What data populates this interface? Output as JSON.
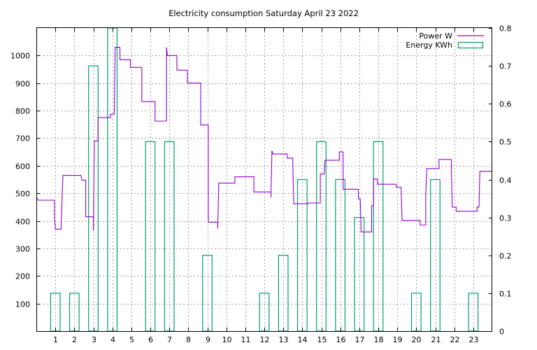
{
  "chart_data": {
    "type": "line",
    "title": "Electricity consumption Saturday April 23 2022",
    "xlabel": "",
    "ylabel": "",
    "xlim": [
      0,
      24
    ],
    "ylim": [
      0,
      1100
    ],
    "y2lim": [
      0,
      0.8
    ],
    "grid": true,
    "legend_position": "top-right",
    "x_ticks": [
      "1",
      "2",
      "3",
      "4",
      "5",
      "6",
      "7",
      "8",
      "9",
      "10",
      "11",
      "12",
      "13",
      "14",
      "15",
      "16",
      "17",
      "18",
      "19",
      "20",
      "21",
      "22",
      "23"
    ],
    "y_ticks": [
      "100",
      "200",
      "300",
      "400",
      "500",
      "600",
      "700",
      "800",
      "900",
      "1000"
    ],
    "y2_ticks": [
      "0",
      "0.1",
      "0.2",
      "0.3",
      "0.4",
      "0.5",
      "0.6",
      "0.7",
      "0.8"
    ],
    "series": [
      {
        "name": "Power W",
        "color": "#9400d3",
        "axis": "y",
        "style": "steps",
        "points": [
          [
            0.0,
            485
          ],
          [
            0.1,
            475
          ],
          [
            0.95,
            475
          ],
          [
            0.95,
            415
          ],
          [
            1.0,
            370
          ],
          [
            1.3,
            370
          ],
          [
            1.35,
            480
          ],
          [
            1.4,
            565
          ],
          [
            2.35,
            565
          ],
          [
            2.4,
            548
          ],
          [
            2.6,
            548
          ],
          [
            2.6,
            415
          ],
          [
            3.0,
            415
          ],
          [
            3.0,
            365
          ],
          [
            3.05,
            690
          ],
          [
            3.25,
            690
          ],
          [
            3.25,
            775
          ],
          [
            3.9,
            775
          ],
          [
            3.9,
            787
          ],
          [
            4.1,
            787
          ],
          [
            4.15,
            1030
          ],
          [
            4.4,
            1030
          ],
          [
            4.4,
            985
          ],
          [
            4.95,
            985
          ],
          [
            4.95,
            957
          ],
          [
            5.55,
            957
          ],
          [
            5.55,
            833
          ],
          [
            6.25,
            833
          ],
          [
            6.25,
            762
          ],
          [
            6.85,
            762
          ],
          [
            6.85,
            1030
          ],
          [
            6.9,
            1000
          ],
          [
            7.4,
            1000
          ],
          [
            7.4,
            947
          ],
          [
            7.95,
            947
          ],
          [
            7.95,
            900
          ],
          [
            8.65,
            900
          ],
          [
            8.65,
            748
          ],
          [
            9.05,
            748
          ],
          [
            9.05,
            395
          ],
          [
            9.55,
            395
          ],
          [
            9.55,
            372
          ],
          [
            9.6,
            537
          ],
          [
            10.45,
            537
          ],
          [
            10.45,
            560
          ],
          [
            11.45,
            560
          ],
          [
            11.45,
            505
          ],
          [
            12.35,
            505
          ],
          [
            12.35,
            485
          ],
          [
            12.4,
            655
          ],
          [
            12.45,
            643
          ],
          [
            13.2,
            643
          ],
          [
            13.2,
            628
          ],
          [
            13.5,
            628
          ],
          [
            13.5,
            600
          ],
          [
            13.55,
            462
          ],
          [
            14.3,
            462
          ],
          [
            14.3,
            465
          ],
          [
            14.95,
            465
          ],
          [
            14.95,
            570
          ],
          [
            15.15,
            570
          ],
          [
            15.2,
            620
          ],
          [
            15.95,
            620
          ],
          [
            15.95,
            650
          ],
          [
            16.15,
            650
          ],
          [
            16.15,
            515
          ],
          [
            16.95,
            515
          ],
          [
            16.95,
            480
          ],
          [
            17.05,
            480
          ],
          [
            17.1,
            360
          ],
          [
            17.65,
            360
          ],
          [
            17.65,
            455
          ],
          [
            17.75,
            455
          ],
          [
            17.75,
            552
          ],
          [
            17.95,
            552
          ],
          [
            17.95,
            533
          ],
          [
            18.95,
            533
          ],
          [
            18.95,
            522
          ],
          [
            19.2,
            522
          ],
          [
            19.25,
            402
          ],
          [
            20.2,
            402
          ],
          [
            20.2,
            385
          ],
          [
            20.5,
            385
          ],
          [
            20.5,
            490
          ],
          [
            20.55,
            590
          ],
          [
            21.2,
            590
          ],
          [
            21.2,
            623
          ],
          [
            21.85,
            623
          ],
          [
            21.85,
            570
          ],
          [
            21.9,
            450
          ],
          [
            22.1,
            450
          ],
          [
            22.1,
            435
          ],
          [
            23.2,
            435
          ],
          [
            23.2,
            450
          ],
          [
            23.3,
            450
          ],
          [
            23.35,
            580
          ],
          [
            24.0,
            580
          ]
        ]
      },
      {
        "name": "Energy KWh",
        "color": "#009e73",
        "axis": "y2",
        "style": "boxes",
        "x": [
          1,
          2,
          3,
          4,
          5,
          6,
          7,
          8,
          9,
          10,
          11,
          12,
          13,
          14,
          15,
          16,
          17,
          18,
          19,
          20,
          21,
          22,
          23
        ],
        "values": [
          0.1,
          0.1,
          0.7,
          0.8,
          0,
          0.5,
          0.5,
          0,
          0.2,
          0,
          0,
          0.1,
          0.2,
          0.4,
          0.5,
          0.4,
          0.3,
          0.5,
          0,
          0.1,
          0.4,
          0,
          0.1
        ]
      }
    ]
  }
}
